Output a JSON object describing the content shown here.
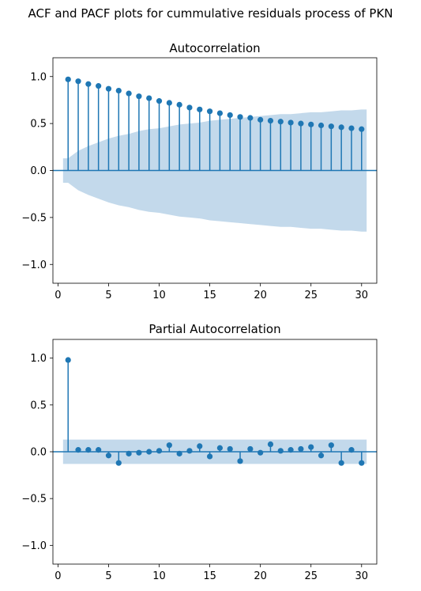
{
  "suptitle": "ACF and PACF plots for cummulative residuals process of PKN",
  "chart_data": [
    {
      "type": "stem",
      "title": "Autocorrelation",
      "xlim": [
        -0.5,
        31.5
      ],
      "ylim": [
        -1.2,
        1.2
      ],
      "xticks": [
        0,
        5,
        10,
        15,
        20,
        25,
        30
      ],
      "yticks": [
        -1.0,
        -0.5,
        0.0,
        0.5,
        1.0
      ],
      "ytick_labels": [
        "−1.0",
        "−0.5",
        "0.0",
        "0.5",
        "1.0"
      ],
      "lags": [
        1,
        2,
        3,
        4,
        5,
        6,
        7,
        8,
        9,
        10,
        11,
        12,
        13,
        14,
        15,
        16,
        17,
        18,
        19,
        20,
        21,
        22,
        23,
        24,
        25,
        26,
        27,
        28,
        29,
        30
      ],
      "values": [
        0.97,
        0.95,
        0.92,
        0.9,
        0.87,
        0.85,
        0.82,
        0.79,
        0.77,
        0.74,
        0.72,
        0.7,
        0.67,
        0.65,
        0.63,
        0.61,
        0.59,
        0.57,
        0.56,
        0.54,
        0.53,
        0.52,
        0.51,
        0.5,
        0.49,
        0.48,
        0.47,
        0.46,
        0.45,
        0.44
      ],
      "confidence_band": {
        "lags": [
          0.5,
          1,
          2,
          3,
          4,
          5,
          6,
          7,
          8,
          9,
          10,
          11,
          12,
          13,
          14,
          15,
          16,
          17,
          18,
          19,
          20,
          21,
          22,
          23,
          24,
          25,
          26,
          27,
          28,
          29,
          30,
          30.5
        ],
        "upper": [
          0.13,
          0.13,
          0.21,
          0.26,
          0.3,
          0.34,
          0.37,
          0.39,
          0.42,
          0.44,
          0.45,
          0.47,
          0.49,
          0.5,
          0.51,
          0.53,
          0.54,
          0.55,
          0.56,
          0.57,
          0.58,
          0.59,
          0.6,
          0.6,
          0.61,
          0.62,
          0.62,
          0.63,
          0.64,
          0.64,
          0.65,
          0.65
        ]
      },
      "colors": {
        "stem": "#1f77b4",
        "band": "#c3d9eb",
        "zero_line": "#1f77b4"
      }
    },
    {
      "type": "stem",
      "title": "Partial Autocorrelation",
      "xlim": [
        -0.5,
        31.5
      ],
      "ylim": [
        -1.2,
        1.2
      ],
      "xticks": [
        0,
        5,
        10,
        15,
        20,
        25,
        30
      ],
      "yticks": [
        -1.0,
        -0.5,
        0.0,
        0.5,
        1.0
      ],
      "ytick_labels": [
        "−1.0",
        "−0.5",
        "0.0",
        "0.5",
        "1.0"
      ],
      "lags": [
        1,
        2,
        3,
        4,
        5,
        6,
        7,
        8,
        9,
        10,
        11,
        12,
        13,
        14,
        15,
        16,
        17,
        18,
        19,
        20,
        21,
        22,
        23,
        24,
        25,
        26,
        27,
        28,
        29,
        30
      ],
      "values": [
        0.98,
        0.02,
        0.02,
        0.02,
        -0.04,
        -0.12,
        -0.02,
        -0.01,
        0.0,
        0.01,
        0.07,
        -0.02,
        0.01,
        0.06,
        -0.05,
        0.04,
        0.03,
        -0.1,
        0.03,
        -0.01,
        0.08,
        0.01,
        0.02,
        0.03,
        0.05,
        -0.04,
        0.07,
        -0.12,
        0.02,
        -0.12
      ],
      "confidence_band": {
        "lags": [
          0.5,
          30.5
        ],
        "upper": [
          0.13,
          0.13
        ]
      },
      "colors": {
        "stem": "#1f77b4",
        "band": "#c3d9eb",
        "zero_line": "#1f77b4"
      }
    }
  ]
}
